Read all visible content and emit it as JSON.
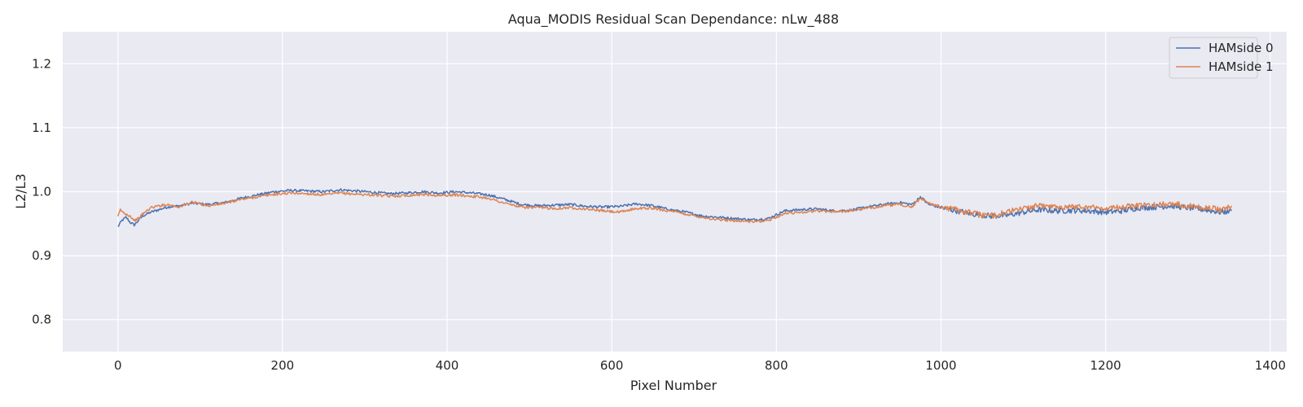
{
  "chart_data": {
    "type": "line",
    "title": "Aqua_MODIS Residual Scan Dependance: nLw_488",
    "xlabel": "Pixel Number",
    "ylabel": "L2/L3",
    "xlim": [
      -67,
      1420
    ],
    "ylim": [
      0.75,
      1.25
    ],
    "xticks": [
      0,
      200,
      400,
      600,
      800,
      1000,
      1200,
      1400
    ],
    "xtick_labels": [
      "0",
      "200",
      "400",
      "600",
      "800",
      "1000",
      "1200",
      "1400"
    ],
    "yticks": [
      0.8,
      0.9,
      1.0,
      1.1,
      1.2
    ],
    "ytick_labels": [
      "0.8",
      "0.9",
      "1.0",
      "1.1",
      "1.2"
    ],
    "grid": true,
    "legend_position": "top-right",
    "colors": {
      "background": "#eaeaf2",
      "grid": "#ffffff",
      "hamside0": "#4c72b0",
      "hamside1": "#dd8452"
    },
    "series": [
      {
        "name": "HAMside 0",
        "color": "#4c72b0",
        "x": [
          0,
          5,
          10,
          15,
          20,
          25,
          30,
          40,
          50,
          60,
          75,
          90,
          110,
          130,
          150,
          170,
          190,
          210,
          230,
          250,
          270,
          290,
          310,
          330,
          350,
          370,
          390,
          410,
          430,
          450,
          470,
          490,
          510,
          530,
          550,
          570,
          590,
          610,
          630,
          650,
          670,
          690,
          710,
          730,
          750,
          770,
          790,
          810,
          830,
          850,
          870,
          890,
          910,
          930,
          950,
          965,
          975,
          985,
          1000,
          1020,
          1040,
          1060,
          1080,
          1100,
          1120,
          1140,
          1160,
          1180,
          1200,
          1220,
          1240,
          1260,
          1280,
          1300,
          1320,
          1340,
          1353
        ],
        "values": [
          0.945,
          0.955,
          0.96,
          0.952,
          0.948,
          0.955,
          0.962,
          0.968,
          0.972,
          0.976,
          0.978,
          0.982,
          0.98,
          0.983,
          0.99,
          0.995,
          1.0,
          1.002,
          1.001,
          1.0,
          1.003,
          1.001,
          0.999,
          0.997,
          0.998,
          1.0,
          0.998,
          1.0,
          0.998,
          0.995,
          0.988,
          0.98,
          0.978,
          0.979,
          0.98,
          0.977,
          0.976,
          0.977,
          0.981,
          0.978,
          0.972,
          0.968,
          0.962,
          0.96,
          0.958,
          0.956,
          0.958,
          0.97,
          0.972,
          0.973,
          0.97,
          0.971,
          0.976,
          0.98,
          0.983,
          0.98,
          0.992,
          0.98,
          0.975,
          0.97,
          0.965,
          0.962,
          0.963,
          0.968,
          0.972,
          0.97,
          0.971,
          0.97,
          0.968,
          0.97,
          0.975,
          0.976,
          0.978,
          0.975,
          0.972,
          0.968,
          0.97
        ]
      },
      {
        "name": "HAMside 1",
        "color": "#dd8452",
        "x": [
          0,
          3,
          6,
          10,
          15,
          20,
          25,
          30,
          40,
          50,
          60,
          75,
          90,
          110,
          130,
          150,
          170,
          190,
          210,
          230,
          250,
          270,
          290,
          310,
          330,
          350,
          370,
          390,
          410,
          430,
          450,
          470,
          490,
          510,
          530,
          550,
          570,
          590,
          610,
          630,
          650,
          670,
          690,
          710,
          730,
          750,
          770,
          790,
          810,
          830,
          850,
          870,
          890,
          910,
          930,
          950,
          965,
          975,
          985,
          1000,
          1020,
          1040,
          1060,
          1080,
          1100,
          1120,
          1140,
          1160,
          1180,
          1200,
          1220,
          1240,
          1260,
          1280,
          1300,
          1320,
          1340,
          1353
        ],
        "values": [
          0.96,
          0.972,
          0.968,
          0.965,
          0.962,
          0.955,
          0.958,
          0.965,
          0.975,
          0.978,
          0.98,
          0.976,
          0.984,
          0.978,
          0.982,
          0.988,
          0.992,
          0.996,
          0.998,
          0.997,
          0.995,
          0.998,
          0.996,
          0.995,
          0.993,
          0.994,
          0.996,
          0.994,
          0.995,
          0.993,
          0.99,
          0.982,
          0.976,
          0.975,
          0.974,
          0.975,
          0.973,
          0.97,
          0.968,
          0.974,
          0.974,
          0.97,
          0.965,
          0.96,
          0.956,
          0.955,
          0.953,
          0.955,
          0.966,
          0.968,
          0.97,
          0.969,
          0.97,
          0.974,
          0.978,
          0.98,
          0.976,
          0.99,
          0.983,
          0.976,
          0.972,
          0.966,
          0.962,
          0.968,
          0.974,
          0.978,
          0.976,
          0.977,
          0.976,
          0.974,
          0.976,
          0.978,
          0.979,
          0.982,
          0.978,
          0.976,
          0.972,
          0.978
        ]
      }
    ]
  }
}
